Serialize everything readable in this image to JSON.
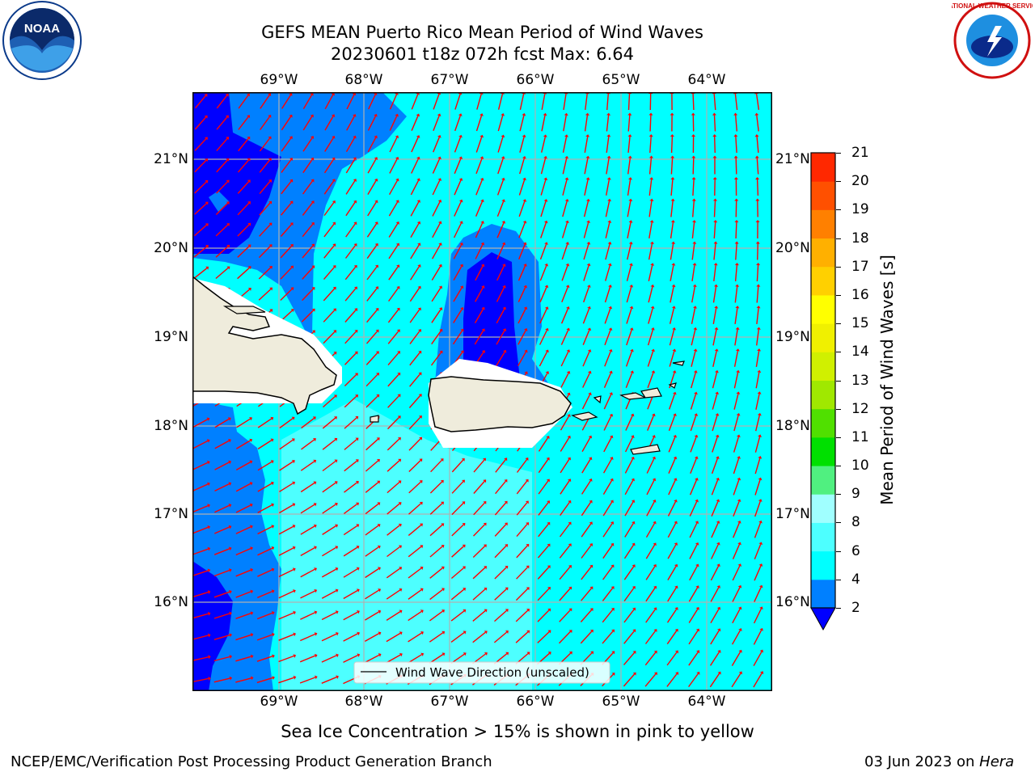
{
  "header": {
    "title_line1": "GEFS MEAN Puerto Rico Mean Period of Wind Waves",
    "title_line2": "20230601 t18z 072h fcst   Max: 6.64"
  },
  "map": {
    "lon_labels": [
      "69°W",
      "68°W",
      "67°W",
      "66°W",
      "65°W",
      "64°W"
    ],
    "lat_labels": [
      "21°N",
      "20°N",
      "19°N",
      "18°N",
      "17°N",
      "16°N"
    ],
    "legend_label": "Wind Wave Direction (unscaled)",
    "colors": {
      "ocean_light": "#00ffff",
      "ocean_pale": "#4dffff",
      "ocean_mid": "#0080ff",
      "ocean_deep": "#0000ff",
      "land": "#efecdc",
      "arrow": "#ff0000"
    }
  },
  "colorbar": {
    "label": "Mean Period of Wind Waves [s]",
    "ticks": [
      "2",
      "4",
      "6",
      "8",
      "9",
      "10",
      "11",
      "12",
      "13",
      "14",
      "15",
      "16",
      "17",
      "18",
      "19",
      "20",
      "21"
    ],
    "colors": [
      "#0080ff",
      "#00ffff",
      "#4dffff",
      "#a0ffff",
      "#50f080",
      "#00e000",
      "#50e000",
      "#a0e800",
      "#d0f000",
      "#f0f000",
      "#ffff00",
      "#ffd000",
      "#ffb000",
      "#ff8000",
      "#ff5000",
      "#ff2800",
      "#ff0000"
    ]
  },
  "caption": "Sea Ice Concentration > 15% is shown in pink to yellow",
  "footer": {
    "left": "NCEP/EMC/Verification Post Processing Product Generation Branch",
    "date": "03 Jun 2023 on ",
    "host": "Hera"
  },
  "logos": {
    "noaa": "NOAA",
    "nws": "NATIONAL WEATHER SERVICE"
  }
}
